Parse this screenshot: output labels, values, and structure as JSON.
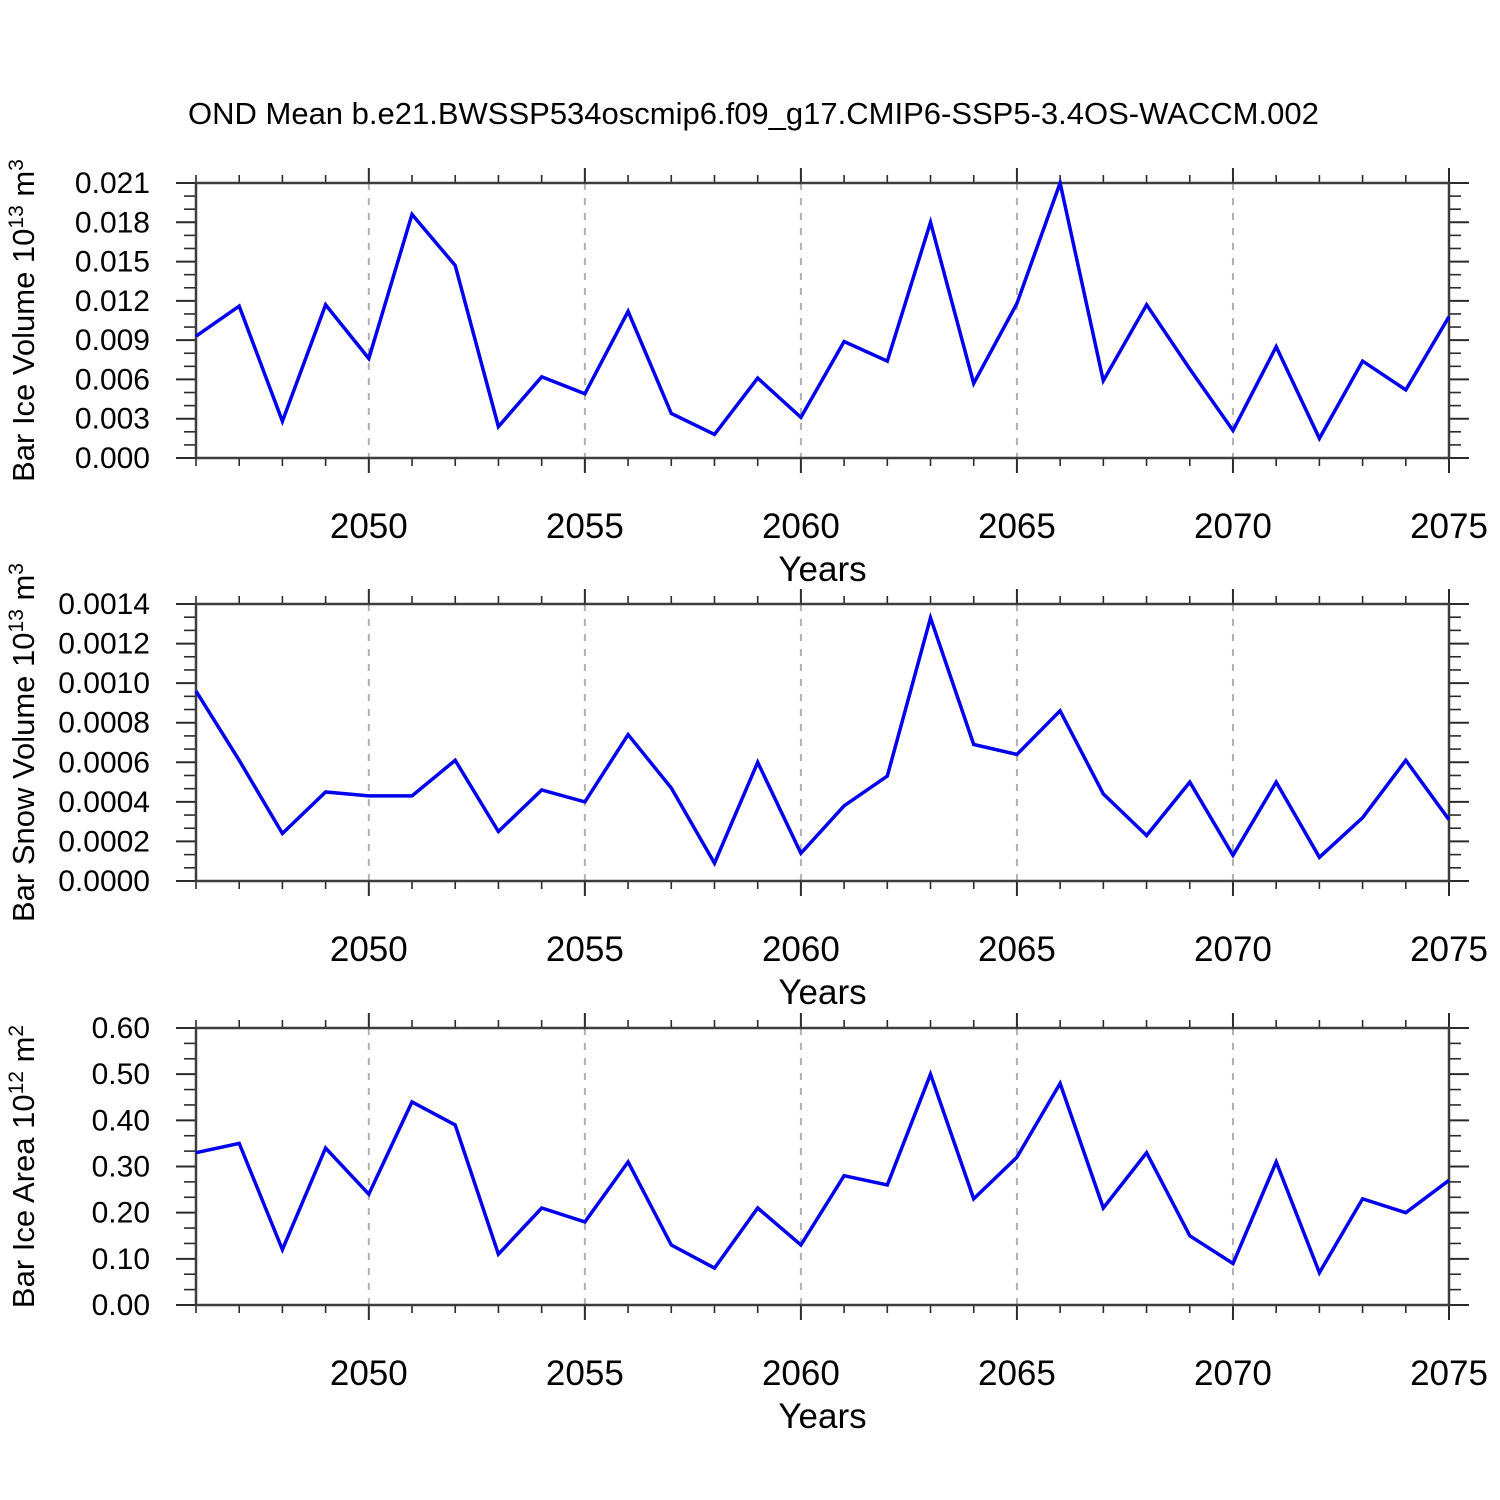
{
  "title": "OND Mean b.e21.BWSSP534oscmip6.f09_g17.CMIP6-SSP5-3.4OS-WACCM.002",
  "style": {
    "line_color": "#0000ee",
    "grid_color": "#b0b0b0",
    "frame_color": "#3d3d3d",
    "tick_color": "#2b2b2b",
    "text_color": "#000000"
  },
  "chart_data": [
    {
      "type": "line",
      "name": "ice-volume",
      "title": "",
      "ylabel_plain": "Bar Ice Volume 10^13 m^3",
      "ylabel_segments": [
        {
          "t": "Bar Ice Volume 10",
          "sup": false
        },
        {
          "t": "13",
          "sup": true
        },
        {
          "t": " m",
          "sup": false
        },
        {
          "t": "3",
          "sup": true
        }
      ],
      "xlabel": "Years",
      "ylim": [
        0,
        0.021
      ],
      "y_major_step": 0.003,
      "y_minor_divisions": 3,
      "y_tick_labels": [
        "0.000",
        "0.003",
        "0.006",
        "0.009",
        "0.012",
        "0.015",
        "0.018",
        "0.021"
      ],
      "xlim": [
        2046,
        2075
      ],
      "x_major_years": [
        2050,
        2055,
        2060,
        2065,
        2070,
        2075
      ],
      "x_tick_labels": [
        "2050",
        "2055",
        "2060",
        "2065",
        "2070",
        "2075"
      ],
      "x_minor_step": 1,
      "gridline_years": [
        2050,
        2055,
        2060,
        2065,
        2070
      ],
      "grid": true,
      "legend": "none",
      "x": [
        2046,
        2047,
        2048,
        2049,
        2050,
        2051,
        2052,
        2053,
        2054,
        2055,
        2056,
        2057,
        2058,
        2059,
        2060,
        2061,
        2062,
        2063,
        2064,
        2065,
        2066,
        2067,
        2068,
        2069,
        2070,
        2071,
        2072,
        2073,
        2074,
        2075
      ],
      "values": [
        0.0093,
        0.0116,
        0.0028,
        0.0117,
        0.0076,
        0.0186,
        0.0147,
        0.0024,
        0.0062,
        0.0049,
        0.0112,
        0.0034,
        0.0018,
        0.0061,
        0.0031,
        0.0089,
        0.0074,
        0.018,
        0.0057,
        0.0118,
        0.021,
        0.0059,
        0.0117,
        0.0068,
        0.0021,
        0.0085,
        0.0015,
        0.0074,
        0.0052,
        0.0108
      ]
    },
    {
      "type": "line",
      "name": "snow-volume",
      "title": "",
      "ylabel_plain": "Bar Snow Volume 10^13 m^3",
      "ylabel_segments": [
        {
          "t": "Bar Snow Volume 10",
          "sup": false
        },
        {
          "t": "13",
          "sup": true
        },
        {
          "t": " m",
          "sup": false
        },
        {
          "t": "3",
          "sup": true
        }
      ],
      "xlabel": "Years",
      "ylim": [
        0,
        0.0014
      ],
      "y_major_step": 0.0002,
      "y_minor_divisions": 3,
      "y_tick_labels": [
        "0.0000",
        "0.0002",
        "0.0004",
        "0.0006",
        "0.0008",
        "0.0010",
        "0.0012",
        "0.0014"
      ],
      "xlim": [
        2046,
        2075
      ],
      "x_major_years": [
        2050,
        2055,
        2060,
        2065,
        2070,
        2075
      ],
      "x_tick_labels": [
        "2050",
        "2055",
        "2060",
        "2065",
        "2070",
        "2075"
      ],
      "x_minor_step": 1,
      "gridline_years": [
        2050,
        2055,
        2060,
        2065,
        2070
      ],
      "grid": true,
      "legend": "none",
      "x": [
        2046,
        2047,
        2048,
        2049,
        2050,
        2051,
        2052,
        2053,
        2054,
        2055,
        2056,
        2057,
        2058,
        2059,
        2060,
        2061,
        2062,
        2063,
        2064,
        2065,
        2066,
        2067,
        2068,
        2069,
        2070,
        2071,
        2072,
        2073,
        2074,
        2075
      ],
      "values": [
        0.00096,
        0.00061,
        0.00024,
        0.00045,
        0.00043,
        0.00043,
        0.00061,
        0.00025,
        0.00046,
        0.0004,
        0.00074,
        0.00047,
        9e-05,
        0.0006,
        0.00014,
        0.00038,
        0.00053,
        0.00133,
        0.00069,
        0.00064,
        0.00086,
        0.00044,
        0.00023,
        0.0005,
        0.00013,
        0.0005,
        0.00012,
        0.00032,
        0.00061,
        0.00031
      ]
    },
    {
      "type": "line",
      "name": "ice-area",
      "title": "",
      "ylabel_plain": "Bar Ice Area 10^12 m^2",
      "ylabel_segments": [
        {
          "t": "Bar Ice Area 10",
          "sup": false
        },
        {
          "t": "12",
          "sup": true
        },
        {
          "t": " m",
          "sup": false
        },
        {
          "t": "2",
          "sup": true
        }
      ],
      "xlabel": "Years",
      "ylim": [
        0,
        0.6
      ],
      "y_major_step": 0.1,
      "y_minor_divisions": 3,
      "y_tick_labels": [
        "0.00",
        "0.10",
        "0.20",
        "0.30",
        "0.40",
        "0.50",
        "0.60"
      ],
      "xlim": [
        2046,
        2075
      ],
      "x_major_years": [
        2050,
        2055,
        2060,
        2065,
        2070,
        2075
      ],
      "x_tick_labels": [
        "2050",
        "2055",
        "2060",
        "2065",
        "2070",
        "2075"
      ],
      "x_minor_step": 1,
      "gridline_years": [
        2050,
        2055,
        2060,
        2065,
        2070
      ],
      "grid": true,
      "legend": "none",
      "x": [
        2046,
        2047,
        2048,
        2049,
        2050,
        2051,
        2052,
        2053,
        2054,
        2055,
        2056,
        2057,
        2058,
        2059,
        2060,
        2061,
        2062,
        2063,
        2064,
        2065,
        2066,
        2067,
        2068,
        2069,
        2070,
        2071,
        2072,
        2073,
        2074,
        2075
      ],
      "values": [
        0.33,
        0.35,
        0.12,
        0.34,
        0.24,
        0.44,
        0.39,
        0.11,
        0.21,
        0.18,
        0.31,
        0.13,
        0.08,
        0.21,
        0.13,
        0.28,
        0.26,
        0.5,
        0.23,
        0.32,
        0.48,
        0.21,
        0.33,
        0.15,
        0.09,
        0.31,
        0.07,
        0.23,
        0.2,
        0.27
      ]
    }
  ]
}
